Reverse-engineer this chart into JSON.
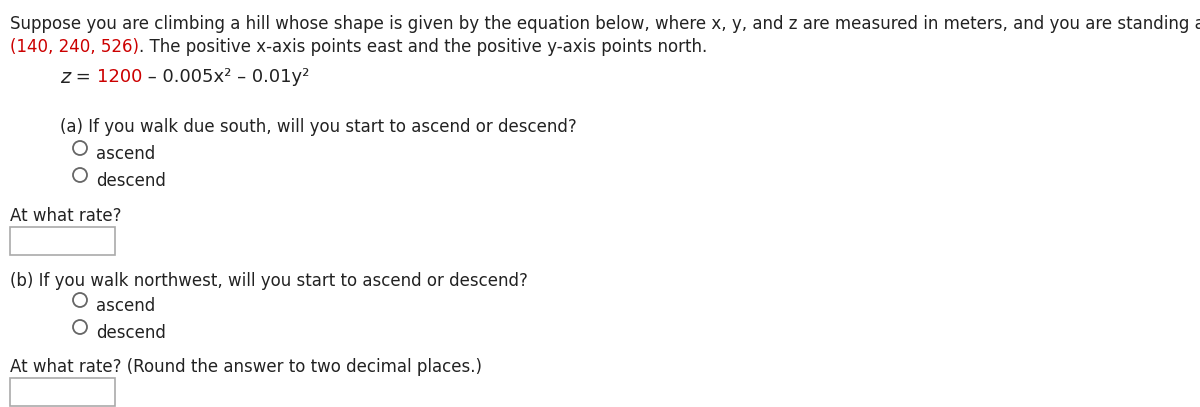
{
  "bg_color": "#ffffff",
  "text_color": "#333333",
  "red_color": "#cc0000",
  "black_color": "#222222",
  "intro_line1": "Suppose you are climbing a hill whose shape is given by the equation below, where x, y, and z are measured in meters, and you are standing at a point with coordinates",
  "intro_line2_red": "(140, 240, 526)",
  "intro_line2_black": ". The positive x-axis points east and the positive y-axis points north.",
  "eq_z": "z",
  "eq_equals": " = ",
  "eq_red": "1200",
  "eq_black": " – 0.005x² – 0.01y²",
  "part_a_q": "(a) If you walk due south, will you start to ascend or descend?",
  "opt_ascend": "ascend",
  "opt_descend": "descend",
  "rate_a_label": "At what rate?",
  "part_b_q": "(b) If you walk northwest, will you start to ascend or descend?",
  "rate_b_label": "At what rate? (Round the answer to two decimal places.)",
  "font_size": 12,
  "font_size_eq": 13
}
